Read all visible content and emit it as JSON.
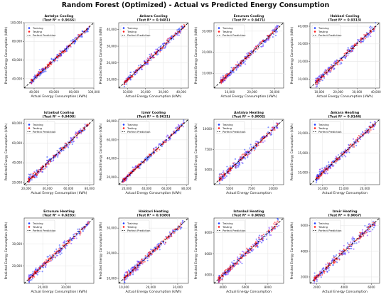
{
  "suptitle": "Random Forest (Optimized) - Actual vs Predicted Energy Consumption",
  "colors": {
    "training": "#1f3cff",
    "testing": "#ff1a1a",
    "perfect": "#000000",
    "training_alt": "#7a2cff"
  },
  "legend": {
    "training": "Training",
    "testing": "Testing",
    "perfect": "Perfect Prediction"
  },
  "chart_data": [
    {
      "type": "scatter",
      "title": "Antalya Cooling\n(Test R² = 0.9666)",
      "xlabel": "Actual Energy Consumption (kWh)",
      "ylabel": "Predicted Energy Consumption (kWh)",
      "xlim": [
        30000,
        100000
      ],
      "ylim": [
        30000,
        100000
      ],
      "xticks": [
        "40,000",
        "60,000",
        "80,000",
        "100,000"
      ],
      "yticks": [
        "40,000",
        "60,000",
        "80,000",
        "100,000"
      ],
      "legend_position": "top-left",
      "grid": true,
      "r2_test": 0.9666,
      "data_range": [
        37000,
        96000
      ],
      "noise": 0.06
    },
    {
      "type": "scatter",
      "title": "Ankara Cooling\n(Test R² = 0.9481)",
      "xlabel": "Actual Energy Consumption (kWh)",
      "ylabel": "Predicted Energy Consumption (kWh)",
      "xlim": [
        5000,
        44000
      ],
      "ylim": [
        5000,
        44000
      ],
      "xticks": [
        "10,000",
        "20,000",
        "30,000",
        "40,000"
      ],
      "yticks": [
        "10,000",
        "20,000",
        "30,000",
        "40,000"
      ],
      "legend_position": "top-left",
      "grid": true,
      "r2_test": 0.9481,
      "data_range": [
        8000,
        42000
      ],
      "noise": 0.07
    },
    {
      "type": "scatter",
      "title": "Erzurum Cooling\n(Test R² = 0.9471)",
      "xlabel": "Actual Energy Consumption (kWh)",
      "ylabel": "Predicted Energy Consumption (kWh)",
      "xlim": [
        3000,
        34000
      ],
      "ylim": [
        3000,
        34000
      ],
      "xticks": [
        "10,000",
        "20,000",
        "30,000"
      ],
      "yticks": [
        "10,000",
        "20,000",
        "30,000"
      ],
      "legend_position": "top-left",
      "grid": true,
      "r2_test": 0.9471,
      "data_range": [
        6000,
        32000
      ],
      "noise": 0.08
    },
    {
      "type": "scatter",
      "title": "Hakkari Cooling\n(Test R² = 0.9313)",
      "xlabel": "Actual Energy Consumption (kWh)",
      "ylabel": "Predicted Energy Consumption (kWh)",
      "xlim": [
        5000,
        42000
      ],
      "ylim": [
        5000,
        42000
      ],
      "xticks": [
        "10,000",
        "20,000",
        "30,000",
        "40,000"
      ],
      "yticks": [
        "10,000",
        "20,000",
        "30,000",
        "40,000"
      ],
      "legend_position": "top-left",
      "grid": true,
      "r2_test": 0.9313,
      "data_range": [
        8000,
        40000
      ],
      "noise": 0.08
    },
    {
      "type": "scatter",
      "title": "Istanbul Cooling\n(Test R² = 0.9408)",
      "xlabel": "Actual Energy Consumption (kWh)",
      "ylabel": "Predicted Energy Consumption (kWh)",
      "xlim": [
        18000,
        84000
      ],
      "ylim": [
        18000,
        84000
      ],
      "xticks": [
        "20,000",
        "40,000",
        "60,000",
        "80,000"
      ],
      "yticks": [
        "20,000",
        "40,000",
        "60,000",
        "80,000"
      ],
      "legend_position": "top-left",
      "grid": true,
      "r2_test": 0.9408,
      "data_range": [
        22000,
        80000
      ],
      "noise": 0.07
    },
    {
      "type": "scatter",
      "title": "Izmir Cooling\n(Test R² = 0.9631)",
      "xlabel": "Actual Energy Consumption (kWh)",
      "ylabel": "Predicted Energy Consumption (kWh)",
      "xlim": [
        12000,
        82000
      ],
      "ylim": [
        12000,
        82000
      ],
      "xticks": [
        "20,000",
        "40,000",
        "60,000",
        "80,000"
      ],
      "yticks": [
        "20,000",
        "40,000",
        "60,000",
        "80,000"
      ],
      "legend_position": "top-left",
      "grid": true,
      "r2_test": 0.9631,
      "data_range": [
        16000,
        78000
      ],
      "noise": 0.06
    },
    {
      "type": "scatter",
      "title": "Antalya Heating\n(Test R² = 0.9002)",
      "xlabel": "Actual Energy Consumption",
      "ylabel": "Predicted Energy Consumption (kWh)",
      "xlim": [
        3200,
        11200
      ],
      "ylim": [
        3200,
        11200
      ],
      "xticks": [
        "5000",
        "7500",
        "10000"
      ],
      "yticks": [
        "5000",
        "7500",
        "10000"
      ],
      "legend_position": "top-left",
      "grid": true,
      "r2_test": 0.9002,
      "data_range": [
        3800,
        10600
      ],
      "noise": 0.09
    },
    {
      "type": "scatter",
      "title": "Ankara Heating\n(Test R² = 0.9144)",
      "xlabel": "Actual Energy Consumption",
      "ylabel": "Predicted Energy Consumption (kWh)",
      "xlim": [
        7000,
        23500
      ],
      "ylim": [
        7000,
        23500
      ],
      "xticks": [
        "10,000",
        "15,000",
        "20,000"
      ],
      "yticks": [
        "10,000",
        "15,000",
        "20,000"
      ],
      "legend_position": "top-left",
      "grid": true,
      "r2_test": 0.9144,
      "data_range": [
        8500,
        22500
      ],
      "noise": 0.08
    },
    {
      "type": "scatter",
      "title": "Erzurum Heating\n(Test R² = 0.9283)",
      "xlabel": "Actual Energy Consumption (kWh)",
      "ylabel": "Predicted Energy Consumption (kWh)",
      "xlim": [
        12000,
        42000
      ],
      "ylim": [
        12000,
        42000
      ],
      "xticks": [
        "20,000",
        "30,000"
      ],
      "yticks": [
        "20,000",
        "30,000"
      ],
      "legend_position": "top-left",
      "grid": true,
      "r2_test": 0.9283,
      "data_range": [
        14000,
        40000
      ],
      "noise": 0.08
    },
    {
      "type": "scatter",
      "title": "Hakkari Heating\n(Test R² = 0.9380)",
      "xlabel": "Actual Energy Consumption (kWh)",
      "ylabel": "Predicted Energy Consumption (kWh)",
      "xlim": [
        8000,
        34000
      ],
      "ylim": [
        8000,
        34000
      ],
      "xticks": [
        "10,000",
        "20,000",
        "30,000"
      ],
      "yticks": [
        "10,000",
        "20,000",
        "30,000"
      ],
      "legend_position": "top-left",
      "grid": true,
      "r2_test": 0.938,
      "data_range": [
        10000,
        32000
      ],
      "noise": 0.08
    },
    {
      "type": "scatter",
      "title": "Istanbul Heating\n(Test R² = 0.9092)",
      "xlabel": "Actual Energy Consumption",
      "ylabel": "Predicted Energy Consumption (kWh)",
      "xlim": [
        3200,
        9400
      ],
      "ylim": [
        3200,
        9400
      ],
      "xticks": [
        "4000",
        "6000",
        "8000"
      ],
      "yticks": [
        "4000",
        "6000",
        "8000"
      ],
      "legend_position": "top-left",
      "grid": true,
      "r2_test": 0.9092,
      "data_range": [
        3600,
        9000
      ],
      "noise": 0.09
    },
    {
      "type": "scatter",
      "title": "Izmir Heating\n(Test R² = 0.9067)",
      "xlabel": "Actual Energy Consumption",
      "ylabel": "Predicted Energy Consumption (kWh)",
      "xlim": [
        1500,
        6600
      ],
      "ylim": [
        1500,
        6600
      ],
      "xticks": [
        "2000",
        "4000",
        "6000"
      ],
      "yticks": [
        "2000",
        "4000",
        "6000"
      ],
      "legend_position": "top-left",
      "grid": true,
      "r2_test": 0.9067,
      "data_range": [
        1800,
        6300
      ],
      "noise": 0.09
    }
  ]
}
